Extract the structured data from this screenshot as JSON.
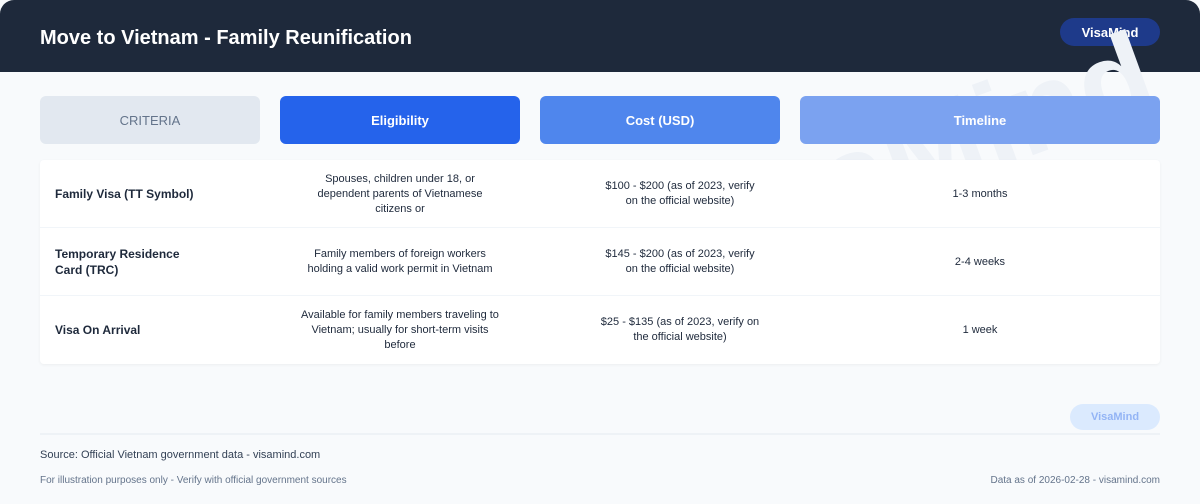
{
  "header": {
    "title": "Move to Vietnam - Family Reunification",
    "badge": "VisaMind"
  },
  "watermark": "VisaMind",
  "columns": [
    {
      "label": "CRITERIA",
      "bg": "#e2e8f0",
      "color": "#64748b"
    },
    {
      "label": "Eligibility",
      "bg": "#2563eb",
      "color": "#ffffff"
    },
    {
      "label": "Cost (USD)",
      "bg": "#4f86ed",
      "color": "#ffffff"
    },
    {
      "label": "Timeline",
      "bg": "#7ba2f0",
      "color": "#ffffff"
    }
  ],
  "rows": [
    {
      "criteria": "Family Visa (TT Symbol)",
      "eligibility": "Spouses, children under 18, or dependent parents of Vietnamese citizens or",
      "cost": "$100 - $200 (as of 2023, verify on the official website)",
      "timeline": "1-3 months"
    },
    {
      "criteria": "Temporary Residence Card (TRC)",
      "eligibility": "Family members of foreign workers holding a valid work permit in Vietnam",
      "cost": "$145 - $200 (as of 2023, verify on the official website)",
      "timeline": "2-4 weeks"
    },
    {
      "criteria": "Visa On Arrival",
      "eligibility": "Available for family members traveling to Vietnam; usually for short-term visits before",
      "cost": "$25 - $135 (as of 2023, verify on the official website)",
      "timeline": "1 week"
    }
  ],
  "footer": {
    "badge": "VisaMind",
    "source": "Source: Official Vietnam government data - visamind.com",
    "disclaimer": "For illustration purposes only - Verify with official government sources",
    "date": "Data as of 2026-02-28 - visamind.com"
  }
}
